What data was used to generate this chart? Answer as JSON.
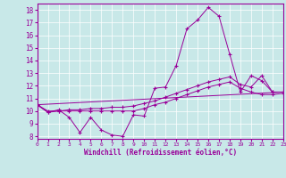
{
  "xlabel": "Windchill (Refroidissement éolien,°C)",
  "bg_color": "#c8e8e8",
  "line_color": "#990099",
  "xlim": [
    0,
    23
  ],
  "ylim": [
    7.8,
    18.5
  ],
  "xticks": [
    0,
    1,
    2,
    3,
    4,
    5,
    6,
    7,
    8,
    9,
    10,
    11,
    12,
    13,
    14,
    15,
    16,
    17,
    18,
    19,
    20,
    21,
    22,
    23
  ],
  "yticks": [
    8,
    9,
    10,
    11,
    12,
    13,
    14,
    15,
    16,
    17,
    18
  ],
  "line1_x": [
    0,
    1,
    2,
    3,
    4,
    5,
    6,
    7,
    8,
    9,
    10,
    11,
    12,
    13,
    14,
    15,
    16,
    17,
    18,
    19,
    20,
    21,
    22,
    23
  ],
  "line1_y": [
    10.5,
    9.9,
    10.1,
    9.5,
    8.3,
    9.5,
    8.5,
    8.1,
    8.0,
    9.7,
    9.6,
    11.8,
    11.9,
    13.6,
    16.5,
    17.2,
    18.2,
    17.5,
    14.5,
    11.5,
    12.8,
    12.4,
    11.5,
    11.5
  ],
  "line2_x": [
    0,
    1,
    2,
    3,
    4,
    5,
    6,
    7,
    8,
    9,
    10,
    11,
    12,
    13,
    14,
    15,
    16,
    17,
    18,
    19,
    20,
    21,
    22,
    23
  ],
  "line2_y": [
    10.5,
    10.0,
    10.0,
    10.1,
    10.1,
    10.2,
    10.2,
    10.3,
    10.3,
    10.4,
    10.6,
    10.8,
    11.1,
    11.4,
    11.7,
    12.0,
    12.3,
    12.5,
    12.7,
    12.1,
    11.9,
    12.8,
    11.5,
    11.5
  ],
  "line3_x": [
    0,
    1,
    2,
    3,
    4,
    5,
    6,
    7,
    8,
    9,
    10,
    11,
    12,
    13,
    14,
    15,
    16,
    17,
    18,
    19,
    20,
    21,
    22,
    23
  ],
  "line3_y": [
    10.5,
    9.9,
    10.0,
    10.0,
    10.0,
    10.0,
    10.0,
    10.0,
    10.0,
    10.0,
    10.2,
    10.5,
    10.7,
    11.0,
    11.3,
    11.6,
    11.9,
    12.1,
    12.3,
    11.8,
    11.5,
    11.3,
    11.3,
    11.4
  ],
  "line4_x": [
    0,
    23
  ],
  "line4_y": [
    10.5,
    11.5
  ]
}
